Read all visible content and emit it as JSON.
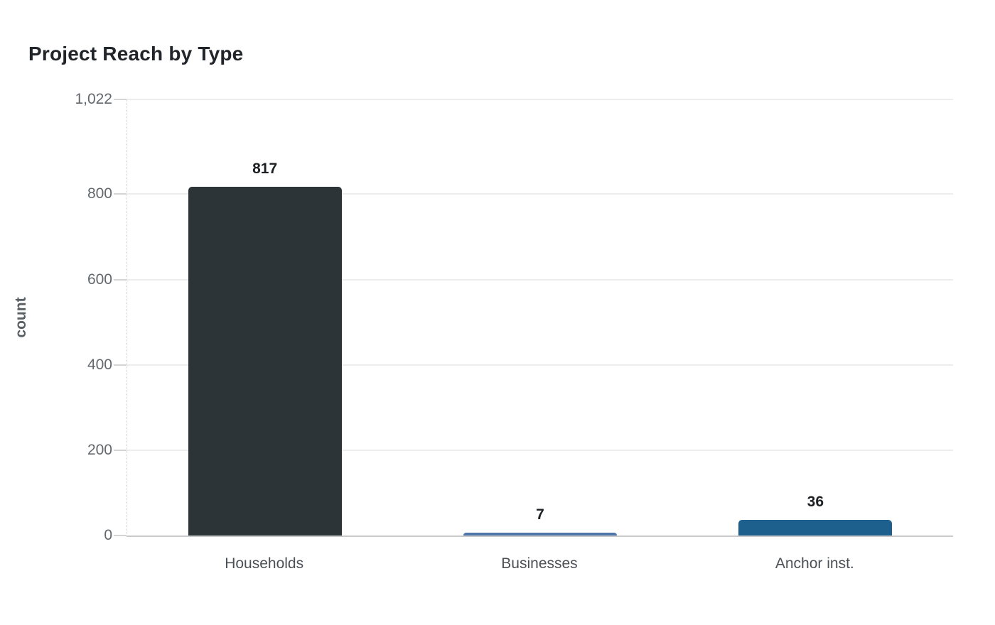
{
  "chart_data": {
    "type": "bar",
    "title": "Project Reach by Type",
    "xlabel": "",
    "ylabel": "count",
    "categories": [
      "Households",
      "Businesses",
      "Anchor inst."
    ],
    "values": [
      817,
      7,
      36
    ],
    "value_labels": [
      "817",
      "7",
      "36"
    ],
    "bar_colors": [
      "#2d3438",
      "#4e76ab",
      "#1e608d"
    ],
    "ylim": [
      0,
      1022
    ],
    "yticks": [
      {
        "value": 0,
        "label": "0"
      },
      {
        "value": 200,
        "label": "200"
      },
      {
        "value": 400,
        "label": "400"
      },
      {
        "value": 600,
        "label": "600"
      },
      {
        "value": 800,
        "label": "800"
      },
      {
        "value": 1022,
        "label": "1,022"
      }
    ],
    "grid": "horizontal",
    "legend": "none",
    "background": "#ffffff"
  }
}
